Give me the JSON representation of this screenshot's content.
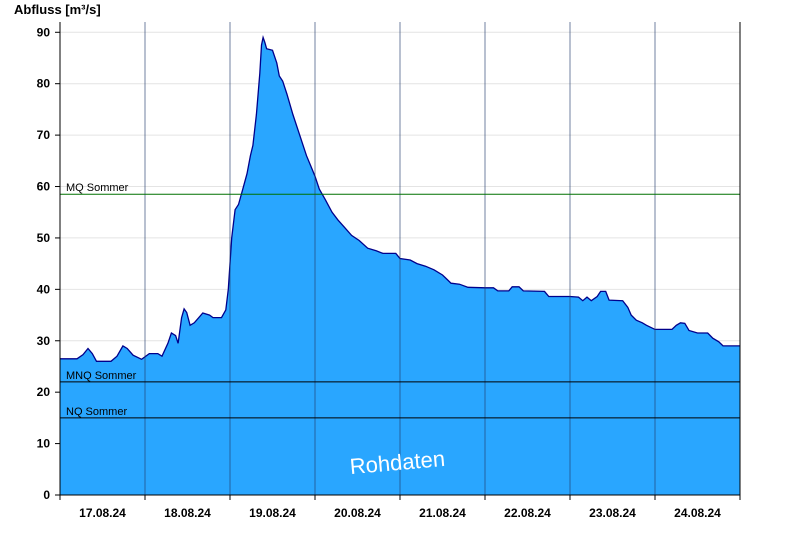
{
  "chart_data": {
    "type": "area",
    "ylabel": "Abfluss [m³/s]",
    "ylim": [
      0,
      92
    ],
    "yticks": [
      0,
      10,
      20,
      30,
      40,
      50,
      60,
      70,
      80,
      90
    ],
    "xlim": [
      0,
      8
    ],
    "xticks": [
      {
        "label": "17.08.24",
        "pos": 0.5
      },
      {
        "label": "18.08.24",
        "pos": 1.5
      },
      {
        "label": "19.08.24",
        "pos": 2.5
      },
      {
        "label": "20.08.24",
        "pos": 3.5
      },
      {
        "label": "21.08.24",
        "pos": 4.5
      },
      {
        "label": "22.08.24",
        "pos": 5.5
      },
      {
        "label": "23.08.24",
        "pos": 6.5
      },
      {
        "label": "24.08.24",
        "pos": 7.5
      }
    ],
    "day_separators": [
      1,
      2,
      3,
      4,
      5,
      6,
      7
    ],
    "series": [
      {
        "fill": "#29a6ff",
        "stroke": "#00008b",
        "points": [
          [
            0.0,
            26.5
          ],
          [
            0.2,
            26.5
          ],
          [
            0.27,
            27.3
          ],
          [
            0.33,
            28.5
          ],
          [
            0.38,
            27.5
          ],
          [
            0.43,
            26.0
          ],
          [
            0.6,
            26.0
          ],
          [
            0.67,
            27.0
          ],
          [
            0.74,
            29.0
          ],
          [
            0.79,
            28.5
          ],
          [
            0.86,
            27.2
          ],
          [
            0.96,
            26.4
          ],
          [
            1.05,
            27.5
          ],
          [
            1.15,
            27.5
          ],
          [
            1.2,
            27.0
          ],
          [
            1.27,
            29.5
          ],
          [
            1.31,
            31.5
          ],
          [
            1.36,
            31.0
          ],
          [
            1.39,
            29.5
          ],
          [
            1.43,
            34.5
          ],
          [
            1.46,
            36.2
          ],
          [
            1.49,
            35.5
          ],
          [
            1.53,
            33.0
          ],
          [
            1.58,
            33.5
          ],
          [
            1.68,
            35.4
          ],
          [
            1.76,
            35.0
          ],
          [
            1.8,
            34.5
          ],
          [
            1.9,
            34.5
          ],
          [
            1.95,
            36.0
          ],
          [
            1.98,
            40.0
          ],
          [
            2.02,
            50.0
          ],
          [
            2.06,
            55.5
          ],
          [
            2.1,
            56.5
          ],
          [
            2.15,
            59.5
          ],
          [
            2.2,
            62.5
          ],
          [
            2.24,
            66.0
          ],
          [
            2.27,
            68.0
          ],
          [
            2.31,
            74.0
          ],
          [
            2.35,
            82.0
          ],
          [
            2.37,
            87.5
          ],
          [
            2.39,
            89.0
          ],
          [
            2.41,
            88.0
          ],
          [
            2.43,
            86.8
          ],
          [
            2.5,
            86.5
          ],
          [
            2.55,
            84.0
          ],
          [
            2.58,
            81.5
          ],
          [
            2.62,
            80.5
          ],
          [
            2.67,
            78.0
          ],
          [
            2.74,
            74.0
          ],
          [
            2.82,
            70.0
          ],
          [
            2.9,
            66.0
          ],
          [
            2.95,
            64.0
          ],
          [
            3.0,
            62.0
          ],
          [
            3.05,
            59.5
          ],
          [
            3.12,
            57.5
          ],
          [
            3.2,
            55.0
          ],
          [
            3.27,
            53.5
          ],
          [
            3.35,
            52.0
          ],
          [
            3.43,
            50.5
          ],
          [
            3.52,
            49.5
          ],
          [
            3.62,
            48.0
          ],
          [
            3.72,
            47.5
          ],
          [
            3.8,
            47.0
          ],
          [
            3.95,
            47.0
          ],
          [
            4.0,
            46.0
          ],
          [
            4.12,
            45.7
          ],
          [
            4.2,
            45.0
          ],
          [
            4.3,
            44.5
          ],
          [
            4.4,
            43.8
          ],
          [
            4.5,
            42.8
          ],
          [
            4.55,
            42.0
          ],
          [
            4.6,
            41.2
          ],
          [
            4.7,
            41.0
          ],
          [
            4.8,
            40.4
          ],
          [
            5.0,
            40.3
          ],
          [
            5.1,
            40.3
          ],
          [
            5.15,
            39.7
          ],
          [
            5.28,
            39.7
          ],
          [
            5.32,
            40.5
          ],
          [
            5.4,
            40.5
          ],
          [
            5.45,
            39.7
          ],
          [
            5.7,
            39.6
          ],
          [
            5.75,
            38.6
          ],
          [
            6.0,
            38.6
          ],
          [
            6.1,
            38.5
          ],
          [
            6.15,
            37.8
          ],
          [
            6.2,
            38.5
          ],
          [
            6.25,
            37.8
          ],
          [
            6.32,
            38.6
          ],
          [
            6.36,
            39.6
          ],
          [
            6.42,
            39.6
          ],
          [
            6.46,
            37.9
          ],
          [
            6.62,
            37.8
          ],
          [
            6.68,
            36.5
          ],
          [
            6.72,
            35.0
          ],
          [
            6.78,
            34.0
          ],
          [
            6.85,
            33.5
          ],
          [
            6.9,
            33.0
          ],
          [
            7.0,
            32.2
          ],
          [
            7.2,
            32.2
          ],
          [
            7.25,
            33.0
          ],
          [
            7.3,
            33.5
          ],
          [
            7.35,
            33.4
          ],
          [
            7.4,
            32.0
          ],
          [
            7.5,
            31.5
          ],
          [
            7.62,
            31.5
          ],
          [
            7.68,
            30.5
          ],
          [
            7.75,
            29.8
          ],
          [
            7.8,
            29.0
          ],
          [
            8.0,
            29.0
          ]
        ]
      }
    ],
    "reference_lines": [
      {
        "label": "MQ Sommer",
        "value": 58.5,
        "color": "#007000"
      },
      {
        "label": "MNQ Sommer",
        "value": 22.0,
        "color": "#000000"
      },
      {
        "label": "NQ Sommer",
        "value": 15.0,
        "color": "#000000"
      }
    ],
    "watermark": "Rohdaten",
    "colors": {
      "fill": "#29a6ff",
      "outline": "#00008b",
      "grid": "#e4e4e4",
      "axis": "#000000"
    }
  }
}
